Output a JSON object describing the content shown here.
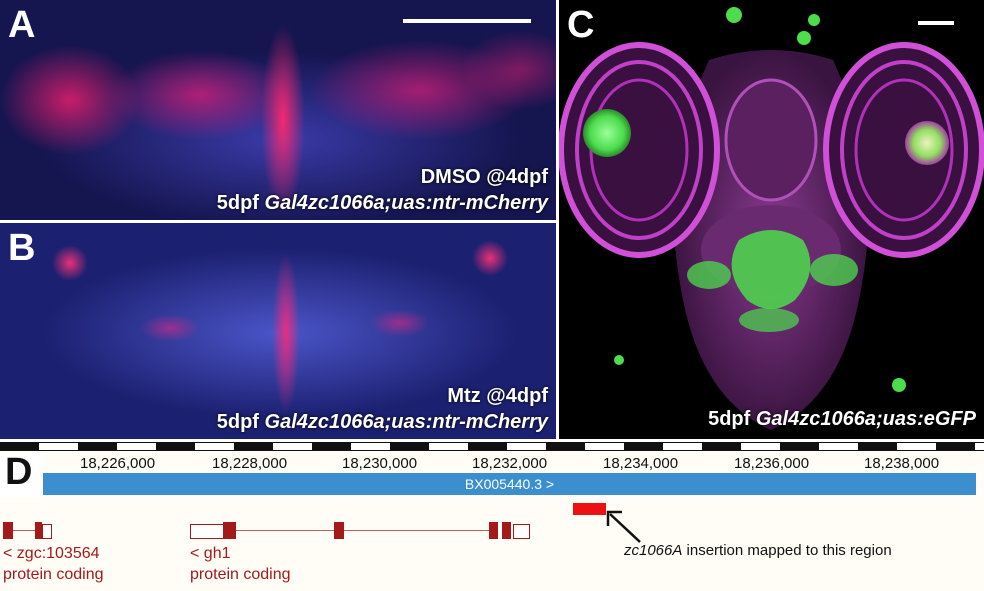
{
  "panel_a": {
    "letter": "A",
    "treatment": "DMSO @4dpf",
    "genotype_prefix": "5dpf ",
    "genotype": "Gal4zc1066a;uas:ntr-mCherry"
  },
  "panel_b": {
    "letter": "B",
    "treatment": "Mtz  @4dpf",
    "genotype_prefix": "5dpf ",
    "genotype": "Gal4zc1066a;uas:ntr-mCherry"
  },
  "panel_c": {
    "letter": "C",
    "genotype_prefix": "5dpf ",
    "genotype": "Gal4zc1066a;uas:eGFP"
  },
  "panel_d": {
    "letter": "D",
    "coordinates": [
      "18,226,000",
      "18,228,000",
      "18,230,000",
      "18,232,000",
      "18,234,000",
      "18,236,000",
      "18,238,000"
    ],
    "clone_track": "BX005440.3 >",
    "genes": [
      {
        "name": "< zgc:103564",
        "biotype": "protein coding"
      },
      {
        "name": "< gh1",
        "biotype": "protein coding"
      }
    ],
    "annotation_italic": "zc1066A",
    "annotation_text": " insertion mapped to this region"
  },
  "colors": {
    "clone_track": "#3b8fcf",
    "exon": "#a21a1a",
    "insertion": "#ee1111",
    "gfp": "#4cdc4c",
    "mcherry": "#ff2a7a",
    "dapi": "#3a3aa8",
    "magenta_stain": "#c040c8"
  }
}
